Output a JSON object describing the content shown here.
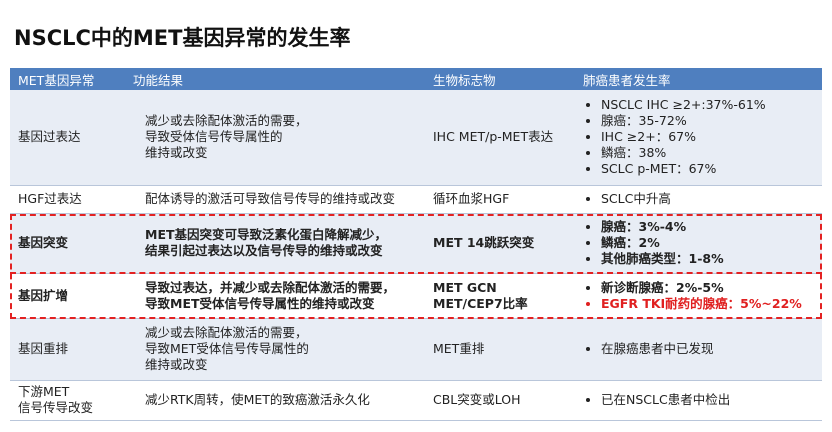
{
  "title": "NSCLC中的MET基因异常的发生率",
  "table": {
    "header": [
      "MET基因异常",
      "功能结果",
      "生物标志物",
      "肺癌患者发生率"
    ],
    "rows": [
      [
        [
          "基因过表达"
        ],
        [
          "减少或去除配体激活的需要，",
          "导致受体信号传导属性的",
          "维持或改变"
        ],
        [
          "IHC MET/p-MET表达"
        ],
        [
          "NSCLC IHC ≥2+:37%-61%",
          "腺癌：35-72%",
          "IHC ≥2+：67%",
          "鳞癌：38%",
          "SCLC p-MET：67%"
        ]
      ],
      [
        [
          "HGF过表达"
        ],
        [
          "配体诱导的激活可导致信号传导的维持或改变"
        ],
        [
          "循环血浆HGF"
        ],
        [
          "SCLC中升高"
        ]
      ],
      [
        [
          "基因突变"
        ],
        [
          "MET基因突变可导致泛素化蛋白降解减少，",
          "结果引起过表达以及信号传导的维持或改变"
        ],
        [
          "MET 14跳跃突变"
        ],
        [
          "腺癌：3%-4%",
          "鳞癌：2%",
          "其他肺癌类型：1-8%"
        ]
      ],
      [
        [
          "基因扩增"
        ],
        [
          "导致过表达，并减少或去除配体激活的需要，",
          "导致MET受体信号传导属性的维持或改变"
        ],
        [
          "MET GCN",
          "MET/CEP7比率"
        ],
        [
          "新诊断腺癌：2%-5%",
          "EGFR TKI耐药的腺癌：5%~22%"
        ]
      ],
      [
        [
          "基因重排"
        ],
        [
          "减少或去除配体激活的需要，",
          "导致MET受体信号传导属性的",
          "维持或改变"
        ],
        [
          "MET重排"
        ],
        [
          "在腺癌患者中已发现"
        ]
      ],
      [
        [
          "下游MET",
          "信号传导改变"
        ],
        [
          "减少RTK周转，使MET的致癌激活永久化"
        ],
        [
          "CBL突变或LOH"
        ],
        [
          "已在NSCLC患者中检出"
        ]
      ]
    ]
  }
}
